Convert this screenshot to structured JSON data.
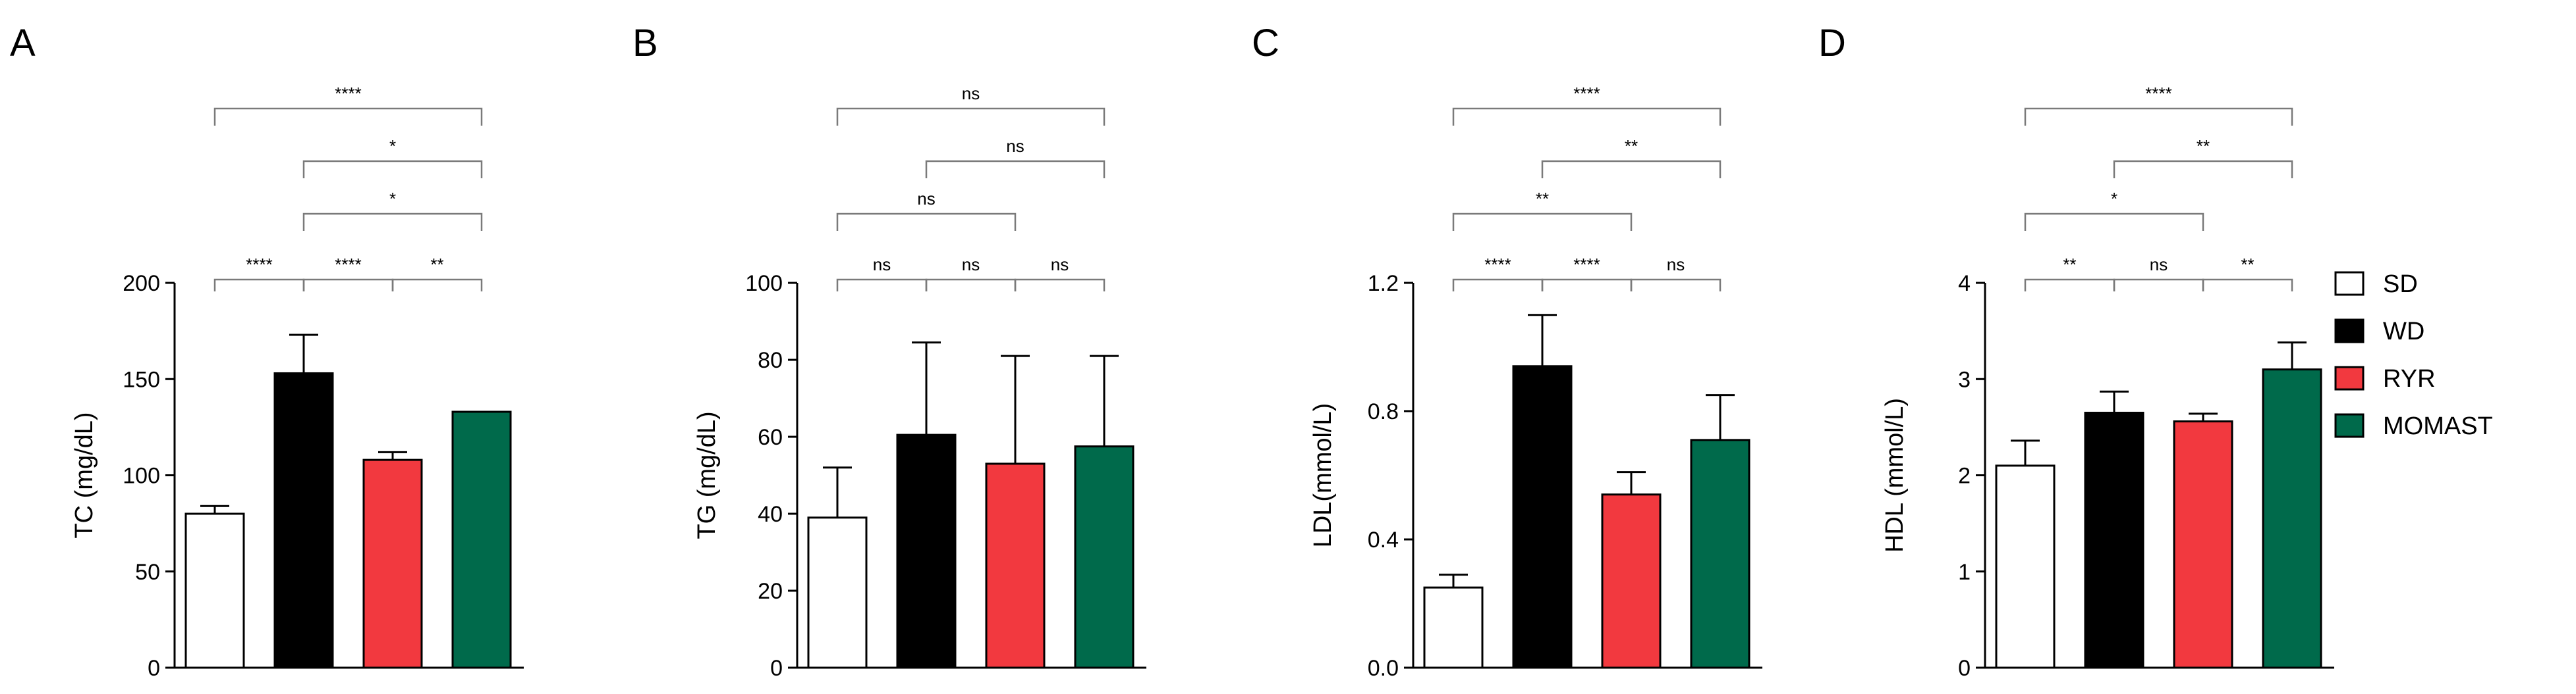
{
  "colors": {
    "SD": "#ffffff",
    "WD": "#000000",
    "RYR": "#f2393f",
    "MOMAST": "#006a4b",
    "outline": "#000000",
    "sigLine": "#7a7a7a"
  },
  "legend": {
    "items": [
      {
        "label": "SD",
        "color": "#ffffff"
      },
      {
        "label": "WD",
        "color": "#000000"
      },
      {
        "label": "RYR",
        "color": "#f2393f"
      },
      {
        "label": "MOMAST",
        "color": "#006a4b"
      }
    ]
  },
  "chart_data": [
    {
      "type": "bar",
      "panel": "A",
      "categories": [
        "SD",
        "WD",
        "RYR",
        "MOMAST"
      ],
      "values": [
        80,
        153,
        108,
        133
      ],
      "errors": [
        4,
        20,
        4,
        0
      ],
      "ylabel": "TC (mg/dL)",
      "ylim": [
        0,
        200
      ],
      "yticks": [
        0,
        50,
        100,
        150,
        200
      ],
      "yticklabels": [
        "0",
        "50",
        "100",
        "150",
        "200"
      ],
      "significance": [
        {
          "label": "****",
          "pair": [
            0,
            1
          ]
        },
        {
          "label": "****",
          "pair": [
            1,
            2
          ]
        },
        {
          "label": "**",
          "pair": [
            2,
            3
          ]
        },
        {
          "label": "*",
          "pair": [
            1,
            3
          ]
        },
        {
          "label": "*",
          "pair": [
            1,
            3
          ]
        },
        {
          "label": "****",
          "pair": [
            0,
            3
          ]
        }
      ]
    },
    {
      "type": "bar",
      "panel": "B",
      "categories": [
        "SD",
        "WD",
        "RYR",
        "MOMAST"
      ],
      "values": [
        39,
        60.5,
        53,
        57.5
      ],
      "errors": [
        13,
        24,
        28,
        23.5
      ],
      "ylabel": "TG (mg/dL)",
      "ylim": [
        0,
        100
      ],
      "yticks": [
        0,
        20,
        40,
        60,
        80,
        100
      ],
      "yticklabels": [
        "0",
        "20",
        "40",
        "60",
        "80",
        "100"
      ],
      "significance": [
        {
          "label": "ns",
          "pair": [
            0,
            1
          ]
        },
        {
          "label": "ns",
          "pair": [
            1,
            2
          ]
        },
        {
          "label": "ns",
          "pair": [
            2,
            3
          ]
        },
        {
          "label": "ns",
          "pair": [
            0,
            2
          ]
        },
        {
          "label": "ns",
          "pair": [
            1,
            3
          ]
        },
        {
          "label": "ns",
          "pair": [
            0,
            3
          ]
        }
      ]
    },
    {
      "type": "bar",
      "panel": "C",
      "categories": [
        "SD",
        "WD",
        "RYR",
        "MOMAST"
      ],
      "values": [
        0.25,
        0.94,
        0.54,
        0.71
      ],
      "errors": [
        0.04,
        0.16,
        0.07,
        0.14
      ],
      "ylabel": "LDL(mmol/L)",
      "ylim": [
        0,
        1.2
      ],
      "yticks": [
        0,
        0.4,
        0.8,
        1.2
      ],
      "yticklabels": [
        "0.0",
        "0.4",
        "0.8",
        "1.2"
      ],
      "significance": [
        {
          "label": "****",
          "pair": [
            0,
            1
          ]
        },
        {
          "label": "****",
          "pair": [
            1,
            2
          ]
        },
        {
          "label": "ns",
          "pair": [
            2,
            3
          ]
        },
        {
          "label": "**",
          "pair": [
            0,
            2
          ]
        },
        {
          "label": "**",
          "pair": [
            1,
            3
          ]
        },
        {
          "label": "****",
          "pair": [
            0,
            3
          ]
        }
      ]
    },
    {
      "type": "bar",
      "panel": "D",
      "categories": [
        "SD",
        "WD",
        "RYR",
        "MOMAST"
      ],
      "values": [
        2.1,
        2.65,
        2.56,
        3.1
      ],
      "errors": [
        0.26,
        0.22,
        0.08,
        0.28
      ],
      "ylabel": "HDL (mmol/L)",
      "ylim": [
        0,
        4
      ],
      "yticks": [
        0,
        1,
        2,
        3,
        4
      ],
      "yticklabels": [
        "0",
        "1",
        "2",
        "3",
        "4"
      ],
      "significance": [
        {
          "label": "**",
          "pair": [
            0,
            1
          ]
        },
        {
          "label": "ns",
          "pair": [
            1,
            2
          ]
        },
        {
          "label": "**",
          "pair": [
            2,
            3
          ]
        },
        {
          "label": "*",
          "pair": [
            0,
            2
          ]
        },
        {
          "label": "**",
          "pair": [
            1,
            3
          ]
        },
        {
          "label": "****",
          "pair": [
            0,
            3
          ]
        }
      ]
    }
  ]
}
